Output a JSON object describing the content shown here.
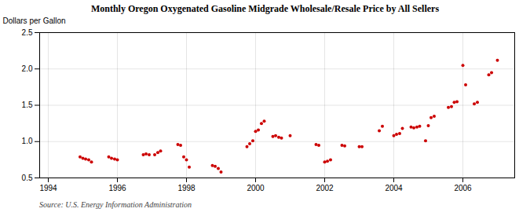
{
  "chart_data": {
    "type": "scatter",
    "title": "Monthly Oregon Oxygenated Gasoline Midgrade Wholesale/Resale Price by All Sellers",
    "ylabel": "Dollars per Gallon",
    "annotation": "Source: U.S. Energy Information Administration",
    "color": "#cc0000",
    "xlim": [
      1993.75,
      2007.5
    ],
    "ylim": [
      0.5,
      2.5
    ],
    "xticks": [
      1994,
      1996,
      1998,
      2000,
      2002,
      2004,
      2006
    ],
    "yticks": [
      0.5,
      {
        "value": 1.0,
        "label": "1.0"
      },
      1.5,
      {
        "value": 2.0,
        "label": "2.0"
      },
      2.5
    ],
    "grid": true,
    "x": [
      1994.92,
      1995.0,
      1995.08,
      1995.17,
      1995.25,
      1995.75,
      1995.83,
      1995.92,
      1996.0,
      1996.75,
      1996.83,
      1996.92,
      1997.08,
      1997.17,
      1997.25,
      1997.75,
      1997.83,
      1997.92,
      1998.0,
      1998.08,
      1998.75,
      1998.83,
      1998.92,
      1999.0,
      1999.75,
      1999.83,
      1999.92,
      2000.0,
      2000.08,
      2000.17,
      2000.25,
      2000.5,
      2000.58,
      2000.67,
      2000.75,
      2001.0,
      2001.75,
      2001.83,
      2002.0,
      2002.08,
      2002.17,
      2002.5,
      2002.58,
      2003.0,
      2003.08,
      2003.58,
      2003.67,
      2004.0,
      2004.08,
      2004.17,
      2004.25,
      2004.5,
      2004.58,
      2004.67,
      2004.75,
      2004.92,
      2005.0,
      2005.08,
      2005.17,
      2005.58,
      2005.67,
      2005.75,
      2005.83,
      2006.0,
      2006.08,
      2006.33,
      2006.42,
      2006.75,
      2006.83,
      2007.0
    ],
    "values": [
      0.79,
      0.77,
      0.76,
      0.75,
      0.72,
      0.79,
      0.77,
      0.76,
      0.75,
      0.82,
      0.83,
      0.82,
      0.82,
      0.85,
      0.87,
      0.96,
      0.95,
      0.79,
      0.75,
      0.65,
      0.67,
      0.66,
      0.63,
      0.58,
      0.93,
      0.97,
      1.01,
      1.14,
      1.16,
      1.25,
      1.28,
      1.07,
      1.08,
      1.06,
      1.05,
      1.08,
      0.96,
      0.95,
      0.72,
      0.73,
      0.75,
      0.95,
      0.94,
      0.93,
      0.93,
      1.15,
      1.21,
      1.08,
      1.1,
      1.11,
      1.18,
      1.2,
      1.19,
      1.2,
      1.21,
      1.01,
      1.22,
      1.33,
      1.35,
      1.47,
      1.48,
      1.54,
      1.55,
      2.05,
      1.78,
      1.52,
      1.54,
      1.92,
      1.95,
      2.12
    ]
  }
}
